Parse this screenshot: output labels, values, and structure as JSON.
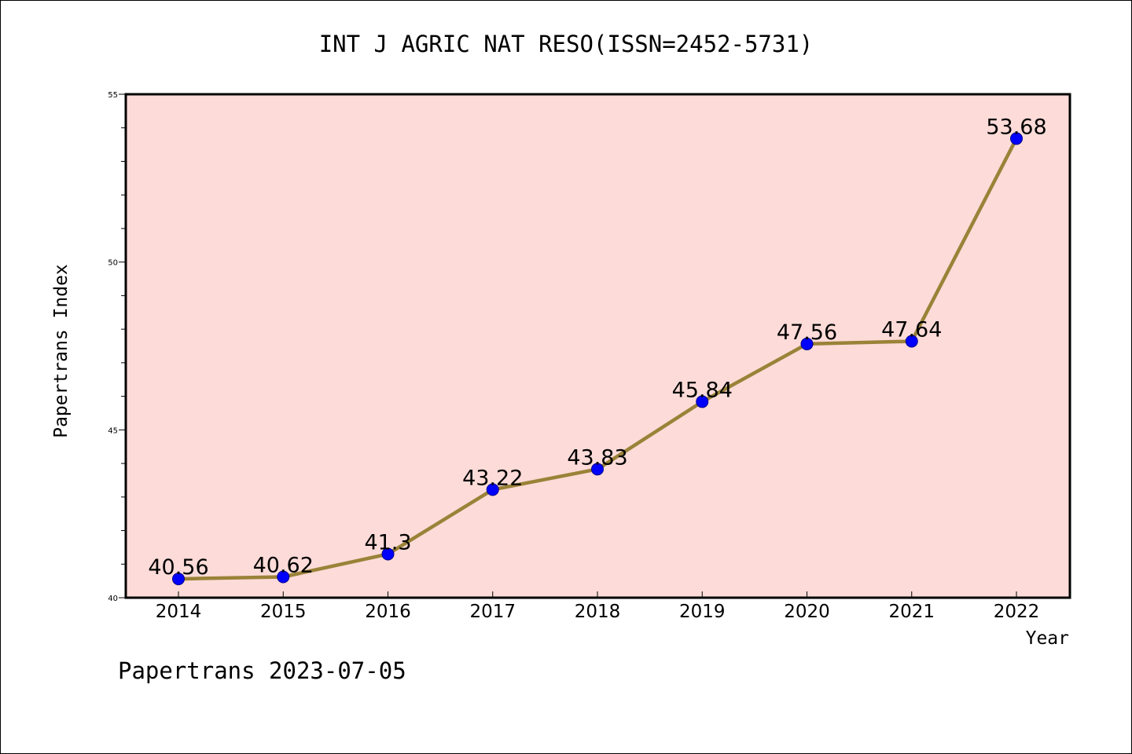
{
  "chart_data": {
    "type": "line",
    "title": "INT J AGRIC NAT RESO(ISSN=2452-5731)",
    "xlabel": "Year",
    "ylabel": "Papertrans Index",
    "categories": [
      "2014",
      "2015",
      "2016",
      "2017",
      "2018",
      "2019",
      "2020",
      "2021",
      "2022"
    ],
    "series": [
      {
        "values": [
          40.56,
          40.62,
          41.3,
          43.22,
          43.83,
          45.84,
          47.56,
          47.64,
          53.68
        ],
        "labels": [
          "40.56",
          "40.62",
          "41.3",
          "43.22",
          "43.83",
          "45.84",
          "47.56",
          "47.64",
          "53.68"
        ]
      }
    ],
    "ylim": [
      40,
      55
    ],
    "yticks": [
      "40",
      "45",
      "50",
      "55"
    ],
    "grid": false,
    "legend": "none",
    "colors": {
      "plot_background": "#fddbd8",
      "line": "#9a8238",
      "marker": "#0000ff",
      "marker_edge": "#00008b"
    }
  },
  "footer": {
    "watermark": "Papertrans 2023-07-05"
  }
}
